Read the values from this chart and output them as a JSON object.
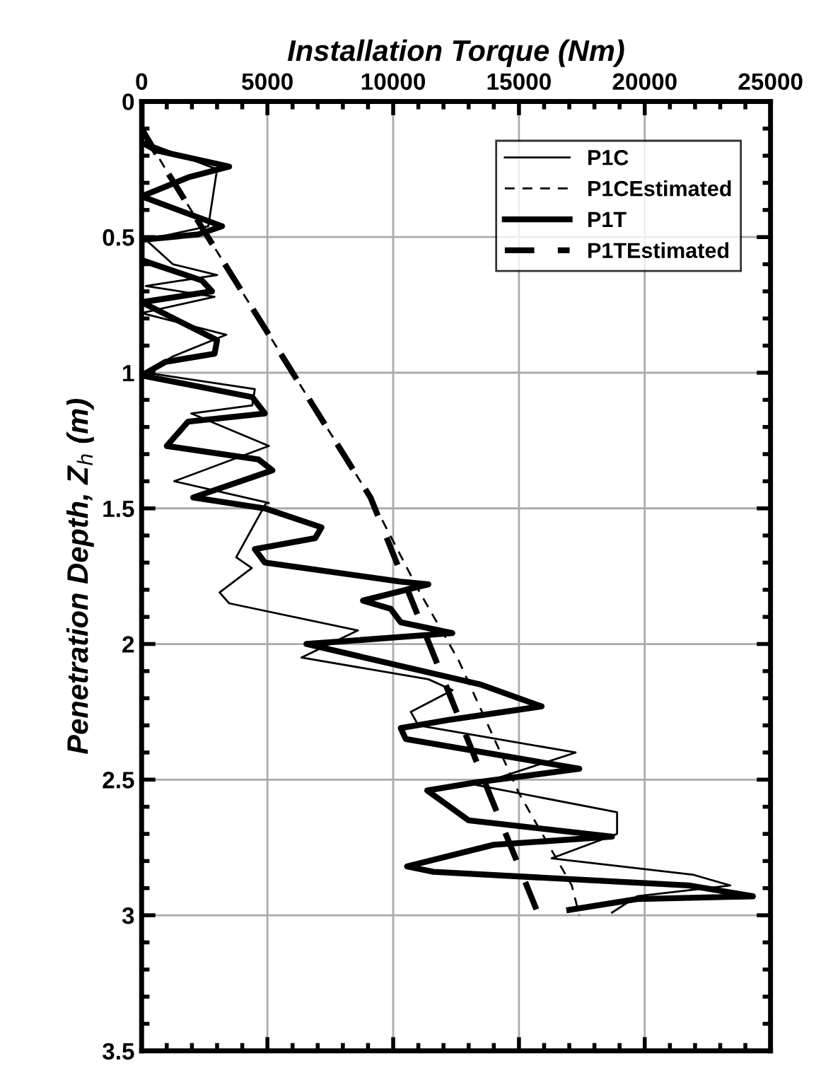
{
  "chart_data": {
    "type": "line",
    "xlabel": "Installation Torque (Nm)",
    "ylabel": "Penetration Depth, Z$_{h}$ (m)",
    "xlim": [
      0,
      25000
    ],
    "xticks": [
      0,
      5000,
      10000,
      15000,
      20000,
      25000
    ],
    "ylim": [
      3.5,
      0
    ],
    "yticks": [
      0,
      0.5,
      1,
      1.5,
      2,
      2.5,
      3,
      3.5
    ],
    "grid": true,
    "legend": "top right",
    "marker": "none",
    "series": [
      {
        "name": "P1C",
        "color": "#000000",
        "line_style": "solid",
        "x": [
          0,
          0,
          3000,
          2650,
          170,
          1240,
          3000,
          170,
          2900,
          0,
          3370,
          1240,
          170,
          4500,
          4400,
          1970,
          5060,
          1300,
          5060,
          4950,
          3760,
          4380,
          3100,
          3480,
          8600,
          6350,
          11400,
          12360,
          10700,
          11000,
          17250,
          13300,
          18900,
          18900,
          16300,
          21900,
          23400,
          19700,
          18700
        ],
        "values": [
          0,
          0.145,
          0.25,
          0.46,
          0.51,
          0.6,
          0.64,
          0.68,
          0.72,
          0.78,
          0.86,
          0.94,
          1.0,
          1.06,
          1.12,
          1.15,
          1.27,
          1.4,
          1.48,
          1.48,
          1.68,
          1.72,
          1.81,
          1.85,
          1.95,
          2.05,
          2.13,
          2.17,
          2.25,
          2.3,
          2.4,
          2.52,
          2.62,
          2.7,
          2.79,
          2.85,
          2.89,
          2.93,
          2.99
        ]
      },
      {
        "name": "P1CEstimated",
        "color": "#000000",
        "line_style": "dashed",
        "x": [
          0,
          955,
          9100,
          11000,
          12600,
          15000,
          17100,
          17400
        ],
        "values": [
          0.1,
          0.25,
          1.46,
          1.8,
          2.06,
          2.55,
          2.89,
          3.0
        ]
      },
      {
        "name": "P1T",
        "color": "#000000",
        "line_style": "solid",
        "x": [
          0,
          0,
          560,
          3480,
          1850,
          0,
          3200,
          2250,
          0,
          0,
          2400,
          2800,
          0,
          3000,
          2900,
          950,
          0,
          4400,
          4900,
          1850,
          1000,
          4650,
          5200,
          2050,
          4900,
          7150,
          6900,
          4500,
          4900,
          10300,
          11400,
          8800,
          9900,
          10300,
          12350,
          6550,
          13500,
          15900,
          12200,
          10300,
          10500,
          17400,
          13300,
          11350,
          13000,
          18700,
          14000,
          10550,
          11600,
          21750,
          24300,
          19700,
          17000
        ],
        "values": [
          0,
          0.15,
          0.18,
          0.24,
          0.28,
          0.35,
          0.46,
          0.49,
          0.51,
          0.585,
          0.66,
          0.7,
          0.74,
          0.88,
          0.93,
          0.96,
          1.01,
          1.09,
          1.15,
          1.18,
          1.27,
          1.32,
          1.36,
          1.46,
          1.5,
          1.57,
          1.61,
          1.65,
          1.7,
          1.77,
          1.78,
          1.84,
          1.87,
          1.92,
          1.96,
          2.0,
          2.15,
          2.23,
          2.28,
          2.31,
          2.35,
          2.46,
          2.51,
          2.54,
          2.65,
          2.71,
          2.74,
          2.82,
          2.84,
          2.89,
          2.93,
          2.94,
          2.98
        ]
      },
      {
        "name": "P1TEstimated",
        "color": "#000000",
        "line_style": "dashed",
        "x": [
          0,
          955,
          9100,
          11350,
          13600,
          15700
        ],
        "values": [
          0.1,
          0.25,
          1.46,
          1.98,
          2.5,
          2.98
        ]
      }
    ]
  }
}
